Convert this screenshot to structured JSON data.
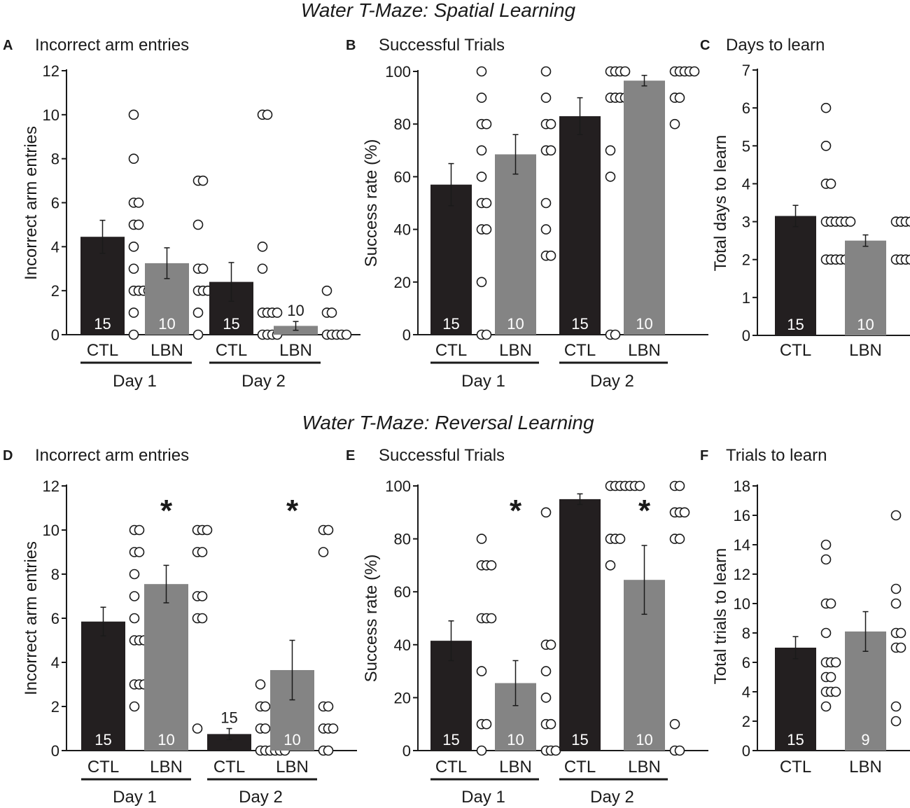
{
  "sections": [
    {
      "title": "Water T-Maze: Spatial Learning"
    },
    {
      "title": "Water T-Maze: Reversal Learning"
    }
  ],
  "colors": {
    "ctl": "#231f20",
    "lbn": "#848484",
    "axis": "#1a1a1a"
  },
  "chart_data": [
    {
      "type": "bar",
      "letter": "A",
      "title": "Incorrect arm entries",
      "ylabel": "Incorrect arm entries",
      "ylim": [
        0,
        12
      ],
      "yticks": [
        0,
        2,
        4,
        6,
        8,
        10,
        12
      ],
      "groups": [
        "Day 1",
        "Day 2"
      ],
      "bars": [
        {
          "label": "CTL",
          "group": "ctl",
          "mean": 4.45,
          "sem": 0.75,
          "n": "15",
          "n_outside": false,
          "points": [
            10,
            8,
            6,
            6,
            5,
            5,
            4,
            3,
            2,
            2,
            2,
            2,
            1,
            0
          ]
        },
        {
          "label": "LBN",
          "group": "lbn",
          "mean": 3.25,
          "sem": 0.7,
          "n": "10",
          "n_outside": false,
          "points": [
            7,
            7,
            5,
            3,
            3,
            2,
            2,
            2,
            1,
            0
          ]
        },
        {
          "label": "CTL",
          "group": "ctl",
          "mean": 2.4,
          "sem": 0.88,
          "n": "15",
          "n_outside": false,
          "points": [
            10,
            10,
            4,
            3,
            1,
            1,
            1,
            1,
            0,
            0,
            0,
            0
          ]
        },
        {
          "label": "LBN",
          "group": "lbn",
          "mean": 0.4,
          "sem": 0.2,
          "n": "10",
          "n_outside": true,
          "points": [
            2,
            1,
            1,
            0,
            0,
            0,
            0,
            0
          ]
        }
      ],
      "significant": []
    },
    {
      "type": "bar",
      "letter": "B",
      "title": "Successful Trials",
      "ylabel": "Success rate (%)",
      "ylim": [
        0,
        100
      ],
      "yticks": [
        0,
        20,
        40,
        60,
        80,
        100
      ],
      "groups": [
        "Day 1",
        "Day 2"
      ],
      "bars": [
        {
          "label": "CTL",
          "group": "ctl",
          "mean": 57,
          "sem": 8,
          "n": "15",
          "n_outside": false,
          "points": [
            100,
            90,
            80,
            80,
            70,
            60,
            50,
            50,
            40,
            40,
            20,
            0,
            0
          ]
        },
        {
          "label": "LBN",
          "group": "lbn",
          "mean": 68.5,
          "sem": 7.5,
          "n": "10",
          "n_outside": false,
          "points": [
            100,
            90,
            80,
            80,
            70,
            70,
            50,
            40,
            30,
            30
          ]
        },
        {
          "label": "CTL",
          "group": "ctl",
          "mean": 83,
          "sem": 7,
          "n": "15",
          "n_outside": false,
          "points": [
            100,
            100,
            100,
            100,
            90,
            90,
            90,
            90,
            70,
            60,
            0,
            0
          ]
        },
        {
          "label": "LBN",
          "group": "lbn",
          "mean": 96.5,
          "sem": 2,
          "n": "10",
          "n_outside": false,
          "points": [
            100,
            100,
            100,
            100,
            100,
            90,
            90,
            80
          ]
        }
      ],
      "significant": []
    },
    {
      "type": "bar",
      "letter": "C",
      "title": "Days to learn",
      "ylabel": "Total days to learn",
      "ylim": [
        0,
        7
      ],
      "yticks": [
        0,
        1,
        2,
        3,
        4,
        5,
        6,
        7
      ],
      "groups": [],
      "bars": [
        {
          "label": "CTL",
          "group": "ctl",
          "mean": 3.15,
          "sem": 0.28,
          "n": "15",
          "n_outside": false,
          "points": [
            6,
            5,
            4,
            4,
            3,
            3,
            3,
            3,
            3,
            3,
            2,
            2,
            2,
            2,
            2
          ]
        },
        {
          "label": "LBN",
          "group": "lbn",
          "mean": 2.5,
          "sem": 0.15,
          "n": "10",
          "n_outside": false,
          "points": [
            3,
            3,
            3,
            3,
            3,
            2,
            2,
            2,
            2,
            2
          ]
        }
      ],
      "significant": []
    },
    {
      "type": "bar",
      "letter": "D",
      "title": "Incorrect arm entries",
      "ylabel": "Incorrect arm entries",
      "ylim": [
        0,
        12
      ],
      "yticks": [
        0,
        2,
        4,
        6,
        8,
        10,
        12
      ],
      "groups": [
        "Day 1",
        "Day 2"
      ],
      "bars": [
        {
          "label": "CTL",
          "group": "ctl",
          "mean": 5.85,
          "sem": 0.65,
          "n": "15",
          "n_outside": false,
          "points": [
            10,
            10,
            9,
            9,
            8,
            7,
            6,
            5,
            5,
            5,
            3,
            3,
            3,
            2
          ]
        },
        {
          "label": "LBN",
          "group": "lbn",
          "mean": 7.55,
          "sem": 0.85,
          "n": "10",
          "n_outside": false,
          "points": [
            10,
            10,
            10,
            9,
            9,
            7,
            7,
            6,
            6,
            1
          ]
        },
        {
          "label": "CTL",
          "group": "ctl",
          "mean": 0.75,
          "sem": 0.25,
          "n": "15",
          "n_outside": true,
          "points": [
            3,
            2,
            2,
            1,
            1,
            0,
            0,
            0,
            0,
            0,
            0
          ]
        },
        {
          "label": "LBN",
          "group": "lbn",
          "mean": 3.65,
          "sem": 1.35,
          "n": "10",
          "n_outside": false,
          "points": [
            10,
            10,
            9,
            2,
            2,
            1,
            1,
            1,
            0,
            0
          ]
        }
      ],
      "significant": [
        1,
        3
      ]
    },
    {
      "type": "bar",
      "letter": "E",
      "title": "Successful Trials",
      "ylabel": "Success rate (%)",
      "ylim": [
        0,
        100
      ],
      "yticks": [
        0,
        20,
        40,
        60,
        80,
        100
      ],
      "groups": [
        "Day 1",
        "Day 2"
      ],
      "bars": [
        {
          "label": "CTL",
          "group": "ctl",
          "mean": 41.5,
          "sem": 7.5,
          "n": "15",
          "n_outside": false,
          "points": [
            80,
            70,
            70,
            70,
            50,
            50,
            50,
            30,
            10,
            10,
            0
          ]
        },
        {
          "label": "LBN",
          "group": "lbn",
          "mean": 25.5,
          "sem": 8.5,
          "n": "10",
          "n_outside": false,
          "points": [
            90,
            40,
            40,
            30,
            20,
            10,
            10,
            0,
            0,
            0
          ]
        },
        {
          "label": "CTL",
          "group": "ctl",
          "mean": 95,
          "sem": 2,
          "n": "15",
          "n_outside": false,
          "points": [
            100,
            100,
            100,
            100,
            100,
            100,
            100,
            80,
            80,
            80,
            70
          ]
        },
        {
          "label": "LBN",
          "group": "lbn",
          "mean": 64.5,
          "sem": 13,
          "n": "10",
          "n_outside": false,
          "points": [
            100,
            100,
            90,
            90,
            90,
            80,
            80,
            10,
            0,
            0
          ]
        }
      ],
      "significant": [
        1,
        3
      ]
    },
    {
      "type": "bar",
      "letter": "F",
      "title": "Trials to learn",
      "ylabel": "Total trials to learn",
      "ylim": [
        0,
        18
      ],
      "yticks": [
        0,
        2,
        4,
        6,
        8,
        10,
        12,
        14,
        16,
        18
      ],
      "groups": [],
      "bars": [
        {
          "label": "CTL",
          "group": "ctl",
          "mean": 7,
          "sem": 0.75,
          "n": "15",
          "n_outside": false,
          "points": [
            14,
            13,
            10,
            10,
            8,
            6,
            6,
            6,
            5,
            5,
            4,
            4,
            4,
            3
          ]
        },
        {
          "label": "LBN",
          "group": "lbn",
          "mean": 8.1,
          "sem": 1.35,
          "n": "9",
          "n_outside": false,
          "points": [
            16,
            11,
            10,
            8,
            8,
            7,
            7,
            3,
            2
          ]
        }
      ],
      "significant": []
    }
  ]
}
